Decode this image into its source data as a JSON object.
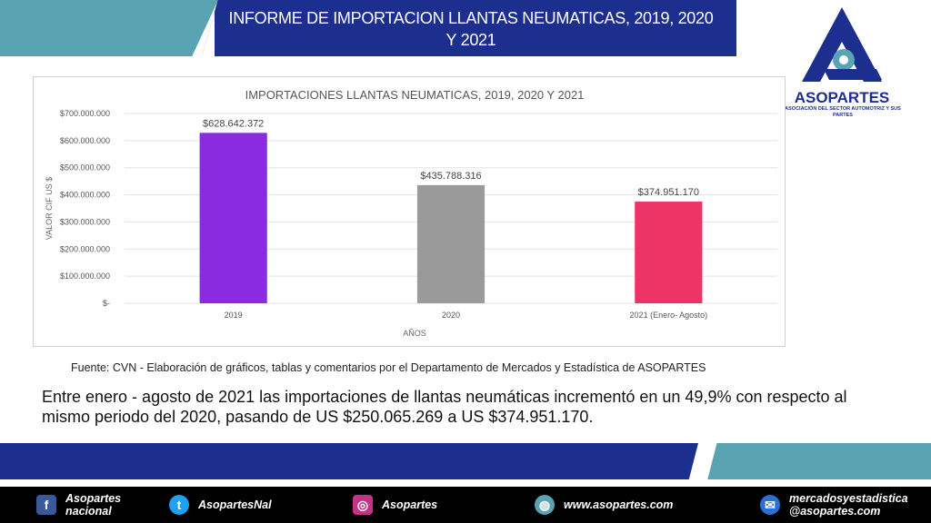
{
  "header": {
    "title": "INFORME DE IMPORTACION LLANTAS NEUMATICAS, 2019, 2020 Y 2021"
  },
  "logo": {
    "name": "ASOPARTES",
    "subtitle": "ASOCIACIÓN DEL SECTOR AUTOMOTRIZ Y SUS PARTES"
  },
  "chart_data": {
    "type": "bar",
    "title": "IMPORTACIONES LLANTAS NEUMATICAS, 2019, 2020 Y 2021",
    "xlabel": "AÑOS",
    "ylabel": "VALOR CIF US $",
    "categories": [
      "2019",
      "2020",
      "2021 (Enero- Agosto)"
    ],
    "values": [
      628642372,
      435788316,
      374951170
    ],
    "data_labels": [
      "$628.642.372",
      "$435.788.316",
      "$374.951.170"
    ],
    "colors": [
      "#8a2be2",
      "#9a9a9a",
      "#ee3366"
    ],
    "ylim": [
      0,
      700000000
    ],
    "yticks": [
      {
        "value": 0,
        "label": "$-"
      },
      {
        "value": 100000000,
        "label": "$100.000.000"
      },
      {
        "value": 200000000,
        "label": "$200.000.000"
      },
      {
        "value": 300000000,
        "label": "$300.000.000"
      },
      {
        "value": 400000000,
        "label": "$400.000.000"
      },
      {
        "value": 500000000,
        "label": "$500.000.000"
      },
      {
        "value": 600000000,
        "label": "$600.000.000"
      },
      {
        "value": 700000000,
        "label": "$700.000.000"
      }
    ],
    "grid": true,
    "legend": "none"
  },
  "source": "Fuente: CVN - Elaboración de gráficos, tablas y comentarios  por el Departamento de Mercados y Estadística de ASOPARTES",
  "summary": "Entre enero - agosto de 2021 las importaciones de llantas neumáticas incrementó en un 49,9% con respecto al mismo periodo del 2020, pasando de US $250.065.269 a US $374.951.170.",
  "footer": {
    "facebook": {
      "line1": "Asopartes",
      "line2": "nacional"
    },
    "twitter": "AsopartesNal",
    "instagram": "Asopartes",
    "web": "www.asopartes.com",
    "email": {
      "line1": "mercadosyestadistica",
      "line2": "@asopartes.com"
    }
  }
}
